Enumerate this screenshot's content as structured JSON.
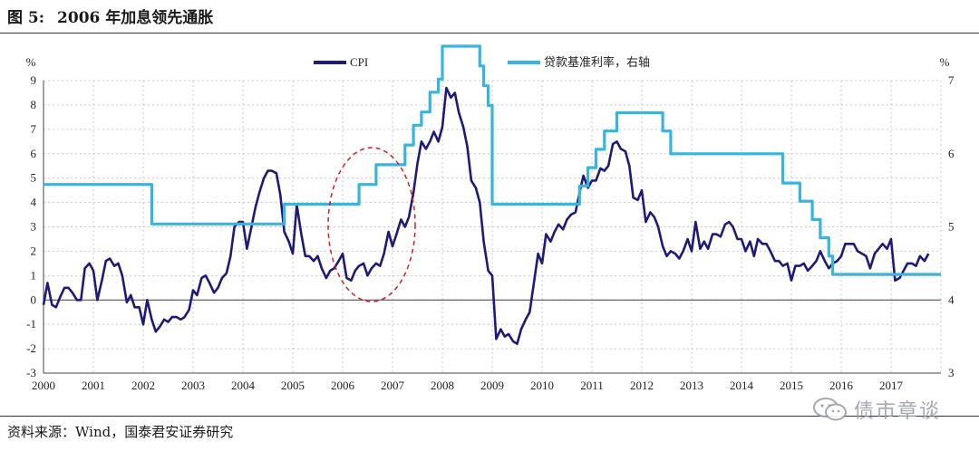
{
  "figure": {
    "label": "图 5:",
    "title": "2006 年加息领先通胀",
    "source": "资料来源：Wind，国泰君安证券研究"
  },
  "watermark": {
    "text": "债市章谈",
    "icon": "wechat-icon"
  },
  "colors": {
    "cpi": "#1e1a78",
    "rate": "#38b4e0",
    "grid": "#c8c8c8",
    "ellipse": "#d42020"
  },
  "chart_data": {
    "type": "line",
    "title": "",
    "x_axis": {
      "min": 2000,
      "max": 2018,
      "ticks": [
        "2000",
        "2001",
        "2002",
        "2003",
        "2004",
        "2005",
        "2006",
        "2007",
        "2008",
        "2009",
        "2010",
        "2011",
        "2012",
        "2013",
        "2014",
        "2015",
        "2016",
        "2017"
      ]
    },
    "y_left": {
      "unit": "%",
      "min": -3,
      "max": 9,
      "ticks": [
        "-3",
        "-2",
        "-1",
        "0",
        "1",
        "2",
        "3",
        "4",
        "5",
        "6",
        "7",
        "8",
        "9"
      ]
    },
    "y_right": {
      "unit": "%",
      "min": 3,
      "max": 7,
      "ticks": [
        "3",
        "4",
        "5",
        "6",
        "7"
      ]
    },
    "grid": true,
    "legend": {
      "position": "top-center"
    },
    "series": [
      {
        "name": "CPI",
        "axis": "left",
        "points": [
          [
            2000.0,
            -0.2
          ],
          [
            2000.08,
            0.7
          ],
          [
            2000.17,
            -0.2
          ],
          [
            2000.25,
            -0.3
          ],
          [
            2000.33,
            0.1
          ],
          [
            2000.42,
            0.5
          ],
          [
            2000.5,
            0.5
          ],
          [
            2000.58,
            0.3
          ],
          [
            2000.67,
            0.0
          ],
          [
            2000.75,
            0.0
          ],
          [
            2000.83,
            1.3
          ],
          [
            2000.92,
            1.5
          ],
          [
            2001.0,
            1.2
          ],
          [
            2001.08,
            0.0
          ],
          [
            2001.17,
            0.8
          ],
          [
            2001.25,
            1.6
          ],
          [
            2001.33,
            1.7
          ],
          [
            2001.42,
            1.4
          ],
          [
            2001.5,
            1.5
          ],
          [
            2001.58,
            1.0
          ],
          [
            2001.67,
            -0.1
          ],
          [
            2001.75,
            0.2
          ],
          [
            2001.83,
            -0.3
          ],
          [
            2001.92,
            -0.3
          ],
          [
            2002.0,
            -1.0
          ],
          [
            2002.08,
            0.0
          ],
          [
            2002.17,
            -0.8
          ],
          [
            2002.25,
            -1.3
          ],
          [
            2002.33,
            -1.1
          ],
          [
            2002.42,
            -0.8
          ],
          [
            2002.5,
            -0.9
          ],
          [
            2002.58,
            -0.7
          ],
          [
            2002.67,
            -0.7
          ],
          [
            2002.75,
            -0.8
          ],
          [
            2002.83,
            -0.7
          ],
          [
            2002.92,
            -0.4
          ],
          [
            2003.0,
            0.4
          ],
          [
            2003.08,
            0.2
          ],
          [
            2003.17,
            0.9
          ],
          [
            2003.25,
            1.0
          ],
          [
            2003.33,
            0.7
          ],
          [
            2003.42,
            0.3
          ],
          [
            2003.5,
            0.5
          ],
          [
            2003.58,
            0.9
          ],
          [
            2003.67,
            1.1
          ],
          [
            2003.75,
            1.8
          ],
          [
            2003.83,
            3.0
          ],
          [
            2003.92,
            3.2
          ],
          [
            2004.0,
            3.2
          ],
          [
            2004.08,
            2.1
          ],
          [
            2004.17,
            3.0
          ],
          [
            2004.25,
            3.8
          ],
          [
            2004.33,
            4.4
          ],
          [
            2004.42,
            5.0
          ],
          [
            2004.5,
            5.3
          ],
          [
            2004.58,
            5.3
          ],
          [
            2004.67,
            5.2
          ],
          [
            2004.75,
            4.3
          ],
          [
            2004.83,
            2.8
          ],
          [
            2004.92,
            2.4
          ],
          [
            2005.0,
            1.9
          ],
          [
            2005.08,
            3.9
          ],
          [
            2005.17,
            2.7
          ],
          [
            2005.25,
            1.8
          ],
          [
            2005.33,
            1.8
          ],
          [
            2005.42,
            1.6
          ],
          [
            2005.5,
            1.8
          ],
          [
            2005.58,
            1.3
          ],
          [
            2005.67,
            0.9
          ],
          [
            2005.75,
            1.2
          ],
          [
            2005.83,
            1.3
          ],
          [
            2005.92,
            1.6
          ],
          [
            2006.0,
            1.9
          ],
          [
            2006.08,
            0.9
          ],
          [
            2006.17,
            0.8
          ],
          [
            2006.25,
            1.2
          ],
          [
            2006.33,
            1.4
          ],
          [
            2006.42,
            1.5
          ],
          [
            2006.5,
            1.0
          ],
          [
            2006.58,
            1.3
          ],
          [
            2006.67,
            1.5
          ],
          [
            2006.75,
            1.4
          ],
          [
            2006.83,
            1.9
          ],
          [
            2006.92,
            2.8
          ],
          [
            2007.0,
            2.2
          ],
          [
            2007.08,
            2.7
          ],
          [
            2007.17,
            3.3
          ],
          [
            2007.25,
            3.0
          ],
          [
            2007.33,
            3.4
          ],
          [
            2007.42,
            4.4
          ],
          [
            2007.5,
            5.6
          ],
          [
            2007.58,
            6.5
          ],
          [
            2007.67,
            6.2
          ],
          [
            2007.75,
            6.5
          ],
          [
            2007.83,
            6.9
          ],
          [
            2007.92,
            6.5
          ],
          [
            2008.0,
            7.1
          ],
          [
            2008.08,
            8.7
          ],
          [
            2008.17,
            8.3
          ],
          [
            2008.25,
            8.5
          ],
          [
            2008.33,
            7.7
          ],
          [
            2008.42,
            7.1
          ],
          [
            2008.5,
            6.3
          ],
          [
            2008.58,
            4.9
          ],
          [
            2008.67,
            4.6
          ],
          [
            2008.75,
            4.0
          ],
          [
            2008.83,
            2.4
          ],
          [
            2008.92,
            1.2
          ],
          [
            2009.0,
            1.0
          ],
          [
            2009.08,
            -1.6
          ],
          [
            2009.17,
            -1.2
          ],
          [
            2009.25,
            -1.5
          ],
          [
            2009.33,
            -1.4
          ],
          [
            2009.42,
            -1.7
          ],
          [
            2009.5,
            -1.8
          ],
          [
            2009.58,
            -1.2
          ],
          [
            2009.67,
            -0.8
          ],
          [
            2009.75,
            -0.5
          ],
          [
            2009.83,
            0.6
          ],
          [
            2009.92,
            1.9
          ],
          [
            2010.0,
            1.5
          ],
          [
            2010.08,
            2.7
          ],
          [
            2010.17,
            2.4
          ],
          [
            2010.25,
            2.8
          ],
          [
            2010.33,
            3.1
          ],
          [
            2010.42,
            2.9
          ],
          [
            2010.5,
            3.3
          ],
          [
            2010.58,
            3.5
          ],
          [
            2010.67,
            3.6
          ],
          [
            2010.75,
            4.4
          ],
          [
            2010.83,
            5.1
          ],
          [
            2010.92,
            4.6
          ],
          [
            2011.0,
            4.9
          ],
          [
            2011.08,
            4.9
          ],
          [
            2011.17,
            5.4
          ],
          [
            2011.25,
            5.3
          ],
          [
            2011.33,
            5.5
          ],
          [
            2011.42,
            6.4
          ],
          [
            2011.5,
            6.5
          ],
          [
            2011.58,
            6.2
          ],
          [
            2011.67,
            6.1
          ],
          [
            2011.75,
            5.5
          ],
          [
            2011.83,
            4.2
          ],
          [
            2011.92,
            4.1
          ],
          [
            2012.0,
            4.5
          ],
          [
            2012.08,
            3.2
          ],
          [
            2012.17,
            3.6
          ],
          [
            2012.25,
            3.4
          ],
          [
            2012.33,
            3.0
          ],
          [
            2012.42,
            2.2
          ],
          [
            2012.5,
            1.8
          ],
          [
            2012.58,
            2.0
          ],
          [
            2012.67,
            1.9
          ],
          [
            2012.75,
            1.7
          ],
          [
            2012.83,
            2.0
          ],
          [
            2012.92,
            2.5
          ],
          [
            2013.0,
            2.0
          ],
          [
            2013.08,
            3.2
          ],
          [
            2013.17,
            2.1
          ],
          [
            2013.25,
            2.4
          ],
          [
            2013.33,
            2.1
          ],
          [
            2013.42,
            2.7
          ],
          [
            2013.5,
            2.7
          ],
          [
            2013.58,
            2.6
          ],
          [
            2013.67,
            3.1
          ],
          [
            2013.75,
            3.2
          ],
          [
            2013.83,
            3.0
          ],
          [
            2013.92,
            2.5
          ],
          [
            2014.0,
            2.5
          ],
          [
            2014.08,
            2.0
          ],
          [
            2014.17,
            2.4
          ],
          [
            2014.25,
            1.8
          ],
          [
            2014.33,
            2.5
          ],
          [
            2014.42,
            2.3
          ],
          [
            2014.5,
            2.3
          ],
          [
            2014.58,
            2.0
          ],
          [
            2014.67,
            1.6
          ],
          [
            2014.75,
            1.6
          ],
          [
            2014.83,
            1.4
          ],
          [
            2014.92,
            1.5
          ],
          [
            2015.0,
            0.8
          ],
          [
            2015.08,
            1.4
          ],
          [
            2015.17,
            1.4
          ],
          [
            2015.25,
            1.5
          ],
          [
            2015.33,
            1.2
          ],
          [
            2015.42,
            1.4
          ],
          [
            2015.5,
            1.6
          ],
          [
            2015.58,
            2.0
          ],
          [
            2015.67,
            1.6
          ],
          [
            2015.75,
            1.3
          ],
          [
            2015.83,
            1.5
          ],
          [
            2015.92,
            1.6
          ],
          [
            2016.0,
            1.8
          ],
          [
            2016.08,
            2.3
          ],
          [
            2016.17,
            2.3
          ],
          [
            2016.25,
            2.3
          ],
          [
            2016.33,
            2.0
          ],
          [
            2016.42,
            1.9
          ],
          [
            2016.5,
            1.8
          ],
          [
            2016.58,
            1.3
          ],
          [
            2016.67,
            1.9
          ],
          [
            2016.75,
            2.1
          ],
          [
            2016.83,
            2.3
          ],
          [
            2016.92,
            2.1
          ],
          [
            2017.0,
            2.5
          ],
          [
            2017.08,
            0.8
          ],
          [
            2017.17,
            0.9
          ],
          [
            2017.25,
            1.2
          ],
          [
            2017.33,
            1.5
          ],
          [
            2017.42,
            1.5
          ],
          [
            2017.5,
            1.4
          ],
          [
            2017.58,
            1.8
          ],
          [
            2017.67,
            1.6
          ],
          [
            2017.75,
            1.9
          ]
        ]
      },
      {
        "name": "贷款基准利率，右轴",
        "axis": "right",
        "step": true,
        "points": [
          [
            2000.0,
            5.58
          ],
          [
            2002.17,
            5.04
          ],
          [
            2004.83,
            5.31
          ],
          [
            2006.33,
            5.58
          ],
          [
            2006.67,
            5.85
          ],
          [
            2007.25,
            6.12
          ],
          [
            2007.42,
            6.39
          ],
          [
            2007.58,
            6.57
          ],
          [
            2007.75,
            6.84
          ],
          [
            2007.92,
            7.02
          ],
          [
            2008.0,
            7.47
          ],
          [
            2008.75,
            7.2
          ],
          [
            2008.83,
            6.93
          ],
          [
            2008.92,
            6.66
          ],
          [
            2009.0,
            5.31
          ],
          [
            2010.75,
            5.56
          ],
          [
            2010.92,
            5.81
          ],
          [
            2011.08,
            6.06
          ],
          [
            2011.25,
            6.31
          ],
          [
            2011.5,
            6.56
          ],
          [
            2012.42,
            6.31
          ],
          [
            2012.58,
            6.0
          ],
          [
            2014.83,
            5.6
          ],
          [
            2015.17,
            5.35
          ],
          [
            2015.42,
            5.1
          ],
          [
            2015.58,
            4.85
          ],
          [
            2015.75,
            4.6
          ],
          [
            2015.83,
            4.35
          ],
          [
            2018.0,
            4.35
          ]
        ]
      }
    ]
  }
}
